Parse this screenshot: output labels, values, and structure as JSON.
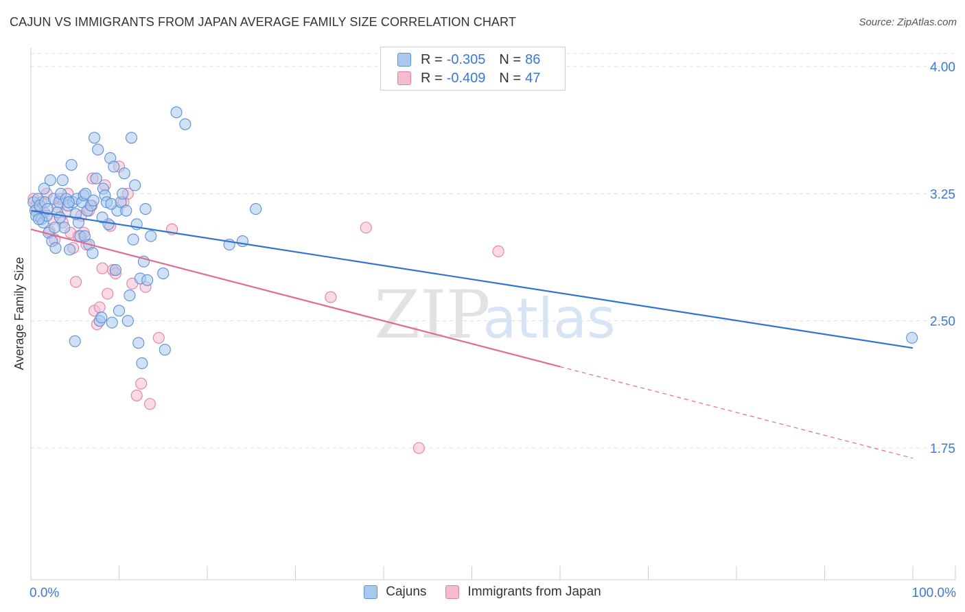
{
  "title": "CAJUN VS IMMIGRANTS FROM JAPAN AVERAGE FAMILY SIZE CORRELATION CHART",
  "source": "Source: ZipAtlas.com",
  "watermark": {
    "zip": "ZIP",
    "atlas": "atlas"
  },
  "legend": {
    "rows": [
      {
        "r_label": "R =",
        "r_value": "-0.305",
        "n_label": "N =",
        "n_value": "86"
      },
      {
        "r_label": "R =",
        "r_value": "-0.409",
        "n_label": "N =",
        "n_value": "47"
      }
    ]
  },
  "colors": {
    "blue_fill": "#a9c8ee",
    "blue_stroke": "#5b8fd6",
    "blue_line": "#2f74d0",
    "pink_fill": "#f5bcd0",
    "pink_stroke": "#e07fa4",
    "pink_line": "#e06a96",
    "tick_label": "#3a78d4",
    "grid": "#dddddd"
  },
  "chart_data": {
    "type": "scatter",
    "title": "CAJUN VS IMMIGRANTS FROM JAPAN AVERAGE FAMILY SIZE CORRELATION CHART",
    "xlabel": "",
    "ylabel": "Average Family Size",
    "xlim": [
      0,
      100
    ],
    "ylim": [
      1.0,
      4.1
    ],
    "x_tick_labels": [
      "0.0%",
      "100.0%"
    ],
    "y_ticks": [
      1.75,
      2.5,
      3.25,
      4.0
    ],
    "y_tick_labels": [
      "1.75",
      "2.50",
      "3.25",
      "4.00"
    ],
    "grid": true,
    "series": [
      {
        "name": "Cajuns",
        "r": -0.305,
        "n": 86,
        "trend": {
          "x0": 0,
          "y0": 3.15,
          "x1": 100,
          "y1": 2.34
        },
        "points": [
          [
            0.3,
            3.2
          ],
          [
            0.5,
            3.15
          ],
          [
            0.6,
            3.12
          ],
          [
            0.8,
            3.22
          ],
          [
            1.0,
            3.18
          ],
          [
            1.2,
            3.1
          ],
          [
            1.4,
            3.08
          ],
          [
            1.6,
            3.2
          ],
          [
            1.8,
            3.12
          ],
          [
            2.0,
            3.02
          ],
          [
            2.2,
            3.33
          ],
          [
            2.4,
            2.97
          ],
          [
            2.6,
            3.22
          ],
          [
            2.8,
            2.93
          ],
          [
            3.0,
            3.14
          ],
          [
            3.2,
            3.2
          ],
          [
            3.4,
            3.25
          ],
          [
            3.6,
            3.33
          ],
          [
            3.8,
            3.05
          ],
          [
            4.0,
            3.22
          ],
          [
            4.2,
            3.18
          ],
          [
            4.4,
            2.92
          ],
          [
            4.6,
            3.42
          ],
          [
            4.8,
            3.2
          ],
          [
            5.0,
            2.38
          ],
          [
            5.2,
            3.22
          ],
          [
            5.4,
            3.08
          ],
          [
            5.6,
            3.0
          ],
          [
            5.8,
            3.2
          ],
          [
            6.0,
            3.24
          ],
          [
            6.2,
            3.25
          ],
          [
            6.4,
            3.15
          ],
          [
            6.6,
            2.95
          ],
          [
            6.8,
            3.18
          ],
          [
            7.0,
            2.9
          ],
          [
            7.2,
            3.58
          ],
          [
            7.4,
            3.34
          ],
          [
            7.6,
            3.51
          ],
          [
            7.8,
            2.5
          ],
          [
            8.0,
            2.52
          ],
          [
            8.2,
            3.28
          ],
          [
            8.4,
            3.24
          ],
          [
            8.6,
            3.2
          ],
          [
            8.8,
            3.07
          ],
          [
            9.0,
            3.46
          ],
          [
            9.2,
            2.49
          ],
          [
            9.4,
            3.41
          ],
          [
            9.6,
            2.8
          ],
          [
            9.8,
            3.15
          ],
          [
            10.0,
            2.56
          ],
          [
            10.2,
            3.2
          ],
          [
            10.4,
            3.25
          ],
          [
            10.6,
            3.37
          ],
          [
            10.8,
            3.15
          ],
          [
            11.0,
            2.5
          ],
          [
            11.2,
            2.65
          ],
          [
            11.4,
            3.58
          ],
          [
            11.6,
            2.98
          ],
          [
            11.8,
            3.3
          ],
          [
            12.0,
            3.07
          ],
          [
            12.2,
            2.37
          ],
          [
            12.4,
            2.75
          ],
          [
            12.6,
            2.25
          ],
          [
            12.8,
            2.85
          ],
          [
            13.0,
            3.16
          ],
          [
            13.2,
            2.74
          ],
          [
            13.6,
            3.0
          ],
          [
            15.0,
            2.78
          ],
          [
            15.2,
            2.33
          ],
          [
            16.5,
            3.73
          ],
          [
            17.5,
            3.66
          ],
          [
            22.5,
            2.95
          ],
          [
            24.0,
            2.97
          ],
          [
            25.5,
            3.16
          ],
          [
            1.5,
            3.28
          ],
          [
            2.7,
            3.05
          ],
          [
            3.3,
            3.11
          ],
          [
            4.3,
            3.2
          ],
          [
            5.1,
            3.13
          ],
          [
            6.1,
            3.0
          ],
          [
            7.1,
            3.21
          ],
          [
            8.1,
            3.11
          ],
          [
            9.1,
            3.19
          ],
          [
            0.9,
            3.1
          ],
          [
            1.9,
            3.16
          ],
          [
            99.9,
            2.4
          ]
        ]
      },
      {
        "name": "Immigrants from Japan",
        "r": -0.409,
        "n": 47,
        "trend": {
          "x0": 0,
          "y0": 3.04,
          "x1": 60,
          "y1": 2.23,
          "dash_x1": 100,
          "dash_y1": 1.69
        },
        "points": [
          [
            0.3,
            3.22
          ],
          [
            0.6,
            3.18
          ],
          [
            0.9,
            3.12
          ],
          [
            1.2,
            3.2
          ],
          [
            1.5,
            3.14
          ],
          [
            1.8,
            3.25
          ],
          [
            2.1,
            3.03
          ],
          [
            2.4,
            3.1
          ],
          [
            2.7,
            2.98
          ],
          [
            3.0,
            3.17
          ],
          [
            3.3,
            3.22
          ],
          [
            3.6,
            3.08
          ],
          [
            3.9,
            3.14
          ],
          [
            4.2,
            3.25
          ],
          [
            4.5,
            3.02
          ],
          [
            4.8,
            2.93
          ],
          [
            5.1,
            2.73
          ],
          [
            5.4,
            3.0
          ],
          [
            5.7,
            3.12
          ],
          [
            6.0,
            3.02
          ],
          [
            6.3,
            2.95
          ],
          [
            6.6,
            3.15
          ],
          [
            6.9,
            3.18
          ],
          [
            7.2,
            2.56
          ],
          [
            7.5,
            2.48
          ],
          [
            7.8,
            2.58
          ],
          [
            8.1,
            2.81
          ],
          [
            8.4,
            3.3
          ],
          [
            8.7,
            2.66
          ],
          [
            9.0,
            3.06
          ],
          [
            9.3,
            2.8
          ],
          [
            9.6,
            2.78
          ],
          [
            10.0,
            3.41
          ],
          [
            10.5,
            3.2
          ],
          [
            11.0,
            3.25
          ],
          [
            11.5,
            2.72
          ],
          [
            12.0,
            2.06
          ],
          [
            12.5,
            2.13
          ],
          [
            13.0,
            2.7
          ],
          [
            13.5,
            2.01
          ],
          [
            14.5,
            2.4
          ],
          [
            16.0,
            3.04
          ],
          [
            34.0,
            2.64
          ],
          [
            38.0,
            3.05
          ],
          [
            44.0,
            1.75
          ],
          [
            53.0,
            2.91
          ],
          [
            7.0,
            3.34
          ]
        ]
      }
    ]
  }
}
